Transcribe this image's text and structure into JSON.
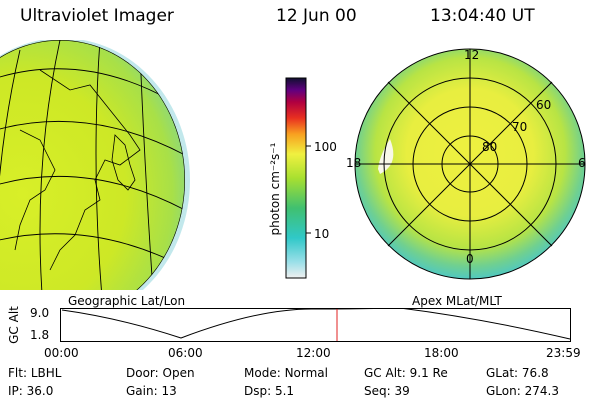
{
  "header": {
    "title": "Ultraviolet Imager",
    "date": "12 Jun 00",
    "time": "13:04:40 UT"
  },
  "left_panel": {
    "caption": "Geographic Lat/Lon"
  },
  "right_panel": {
    "caption": "Apex MLat/MLT",
    "mlt_labels": {
      "top": "12",
      "bottom": "0",
      "left": "18",
      "right": "6"
    },
    "lat_labels": [
      "80",
      "70",
      "60"
    ]
  },
  "colorbar": {
    "unit_label": "photon cm⁻²s⁻¹",
    "ticks": [
      "100",
      "10"
    ],
    "scale": "log"
  },
  "altitude_plot": {
    "ylabel": "GC Alt",
    "yticks": [
      "9.0",
      "1.8"
    ],
    "xticks": [
      "00:00",
      "06:00",
      "12:00",
      "18:00",
      "23:59"
    ],
    "current_time_marker": "13:04"
  },
  "info": {
    "row1": [
      {
        "label": "Flt:",
        "value": "LBHL"
      },
      {
        "label": "Door:",
        "value": "Open"
      },
      {
        "label": "Mode:",
        "value": "Normal"
      },
      {
        "label": "GC Alt:",
        "value": "9.1 Re"
      },
      {
        "label": "GLat:",
        "value": "76.8"
      }
    ],
    "row2": [
      {
        "label": "IP:",
        "value": "36.0"
      },
      {
        "label": "Gain:",
        "value": "13"
      },
      {
        "label": "Dsp:",
        "value": "5.1"
      },
      {
        "label": "Seq:",
        "value": "39"
      },
      {
        "label": "GLon:",
        "value": "274.3"
      }
    ]
  }
}
